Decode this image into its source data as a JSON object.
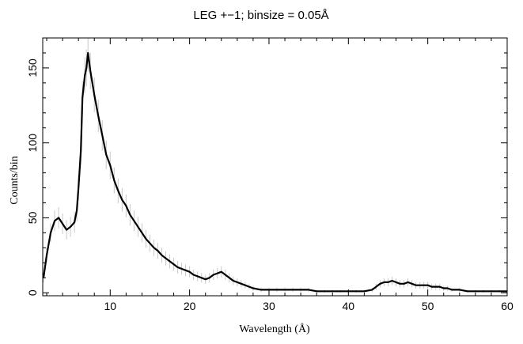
{
  "chart_data": {
    "type": "line",
    "title": "LEG +−1; binsize = 0.05Å",
    "xlabel": "Wavelength (Å)",
    "ylabel": "Counts/bin",
    "xlim": [
      1.5,
      60
    ],
    "ylim": [
      -2,
      170
    ],
    "xticks": [
      10,
      20,
      30,
      40,
      50,
      60
    ],
    "yticks": [
      0,
      50,
      100,
      150
    ],
    "grid": false,
    "line_color": "#000000",
    "errorbar_color": "#c8c8c8",
    "series": [
      {
        "x": [
          1.6,
          2.0,
          2.5,
          3.0,
          3.5,
          4.0,
          4.5,
          5.0,
          5.5,
          5.8,
          6.0,
          6.3,
          6.5,
          6.8,
          7.0,
          7.2,
          7.5,
          8.0,
          8.5,
          9.0,
          9.5,
          10.0,
          10.5,
          11.0,
          11.5,
          12.0,
          12.5,
          13.0,
          13.5,
          14.0,
          14.5,
          15.0,
          15.5,
          16.0,
          16.5,
          17.0,
          17.5,
          18.0,
          18.5,
          19.0,
          19.5,
          20.0,
          20.5,
          21.0,
          21.5,
          22.0,
          22.5,
          23.0,
          23.5,
          24.0,
          24.5,
          25.0,
          25.5,
          26.0,
          26.5,
          27.0,
          27.5,
          28.0,
          29.0,
          30.0,
          31.0,
          32.0,
          33.0,
          34.0,
          35.0,
          36.0,
          37.0,
          38.0,
          39.0,
          40.0,
          41.0,
          42.0,
          43.0,
          43.5,
          44.0,
          44.5,
          45.0,
          45.5,
          46.0,
          46.5,
          47.0,
          47.5,
          48.0,
          48.5,
          49.0,
          49.5,
          50.0,
          50.5,
          51.0,
          51.5,
          52.0,
          52.5,
          53.0,
          54.0,
          55.0,
          56.0,
          57.0,
          58.0,
          59.0,
          60.0
        ],
        "values": [
          10,
          25,
          40,
          48,
          50,
          46,
          42,
          44,
          47,
          55,
          70,
          95,
          130,
          145,
          150,
          160,
          148,
          132,
          118,
          105,
          92,
          85,
          75,
          68,
          62,
          58,
          52,
          48,
          44,
          40,
          36,
          33,
          30,
          28,
          25,
          23,
          21,
          19,
          17,
          16,
          15,
          14,
          12,
          11,
          10,
          9,
          10,
          12,
          13,
          14,
          12,
          10,
          8,
          7,
          6,
          5,
          4,
          3,
          2,
          2,
          2,
          2,
          2,
          2,
          2,
          1,
          1,
          1,
          1,
          1,
          1,
          1,
          2,
          4,
          6,
          7,
          7,
          8,
          7,
          6,
          6,
          7,
          6,
          5,
          5,
          5,
          5,
          4,
          4,
          4,
          3,
          3,
          2,
          2,
          1,
          1,
          1,
          1,
          1,
          1
        ]
      }
    ]
  }
}
